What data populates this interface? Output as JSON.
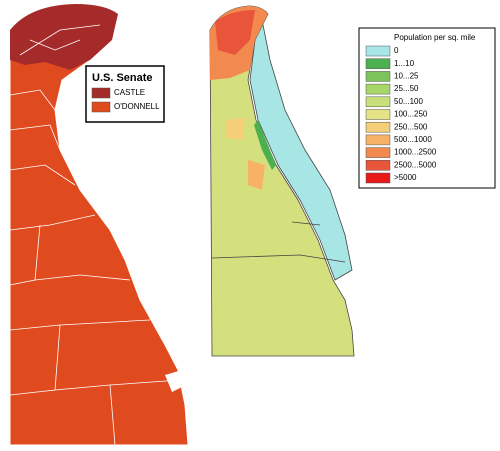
{
  "left_map": {
    "legend": {
      "title": "U.S. Senate",
      "items": [
        {
          "label": "CASTLE",
          "color": "#a52a2a"
        },
        {
          "label": "O'DONNELL",
          "color": "#e04a1f"
        }
      ]
    }
  },
  "right_map": {
    "legend": {
      "title": "Population per sq. mile",
      "items": [
        {
          "label": "0",
          "color": "#a8e6e6"
        },
        {
          "label": "1...10",
          "color": "#4caf50"
        },
        {
          "label": "10...25",
          "color": "#7cc35c"
        },
        {
          "label": "25...50",
          "color": "#a9d66b"
        },
        {
          "label": "50...100",
          "color": "#c8e07a"
        },
        {
          "label": "100...250",
          "color": "#e4e486"
        },
        {
          "label": "250...500",
          "color": "#f5cf78"
        },
        {
          "label": "500...1000",
          "color": "#f7b266"
        },
        {
          "label": "1000...2500",
          "color": "#f2894f"
        },
        {
          "label": "2500...5000",
          "color": "#e8553a"
        },
        {
          "label": ">5000",
          "color": "#e81818"
        }
      ]
    }
  }
}
